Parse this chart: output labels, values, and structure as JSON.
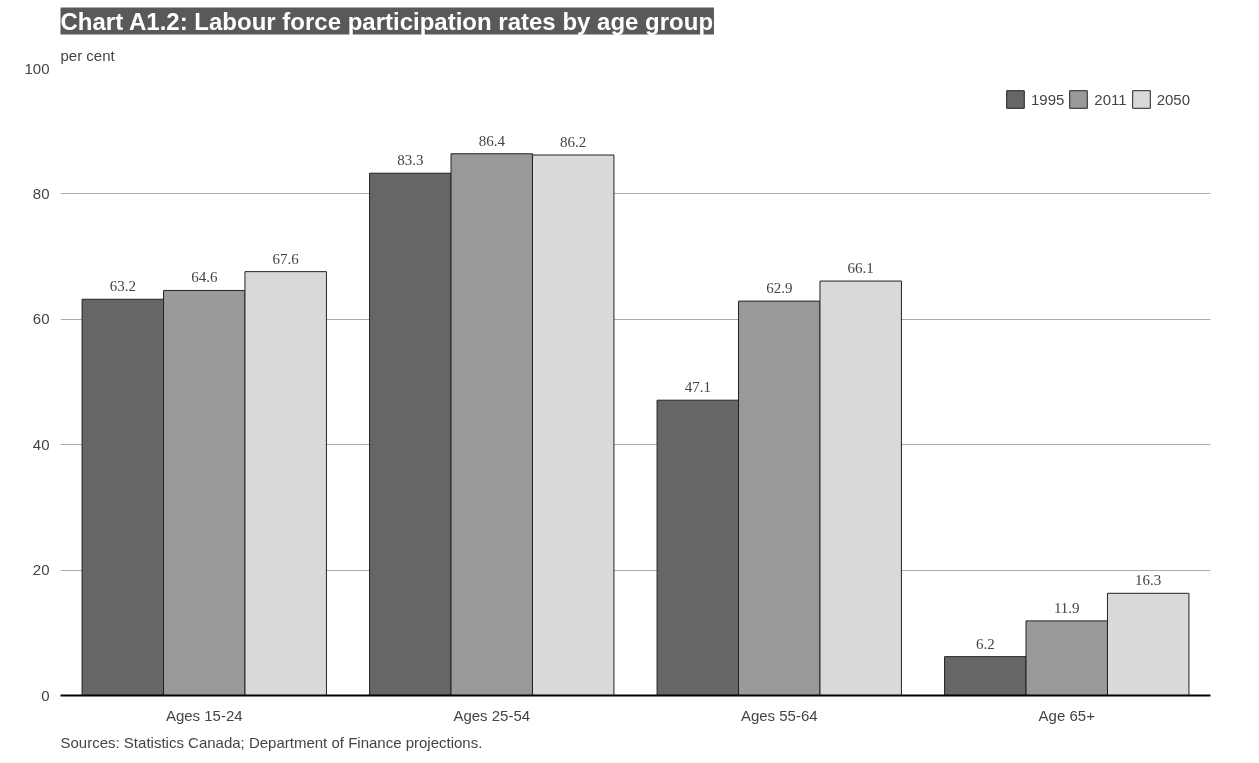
{
  "chart_data": {
    "type": "bar",
    "title": "Chart A1.2: Labour force participation rates by age group",
    "ylabel": "per cent",
    "categories": [
      "Ages 15-24",
      "Ages 25-54",
      "Ages 55-64",
      "Age 65+"
    ],
    "series": [
      {
        "name": "1995",
        "color": "#666666",
        "values": [
          63.2,
          83.3,
          47.1,
          6.2
        ]
      },
      {
        "name": "2011",
        "color": "#999999",
        "values": [
          64.6,
          86.4,
          62.9,
          11.9
        ]
      },
      {
        "name": "2050",
        "color": "#d9d9d9",
        "values": [
          67.6,
          86.2,
          66.1,
          16.3
        ]
      }
    ],
    "ylim": [
      0,
      100
    ],
    "yticks": [
      0,
      20,
      40,
      60,
      80,
      100
    ],
    "grid": "y",
    "legend": "top right",
    "data_labels": true,
    "annotations": [
      "Sources: Statistics Canada; Department of Finance projections."
    ]
  }
}
